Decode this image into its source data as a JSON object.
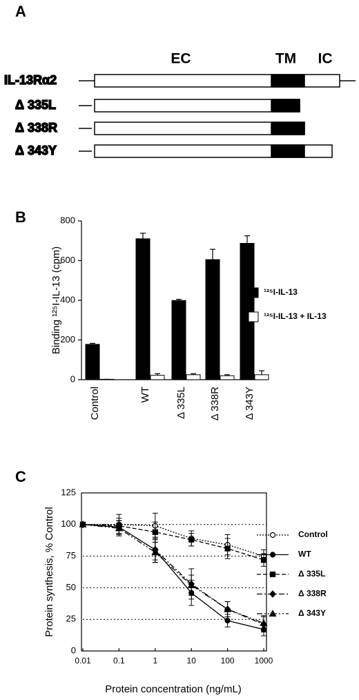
{
  "panel_labels": [
    "A",
    "B",
    "C"
  ],
  "diagram": {
    "domains": [
      "EC",
      "TM",
      "IC"
    ],
    "rows": [
      "IL-13Rα2",
      "Δ 335L",
      "Δ 338R",
      "Δ 343Y"
    ]
  },
  "chart_data": [
    {
      "type": "bar",
      "ylabel": "Binding ¹²⁵I-IL-13 (cpm)",
      "categories": [
        "Control",
        "WT",
        "Δ 335L",
        "Δ 338R",
        "Δ 343Y"
      ],
      "series": [
        {
          "name": "¹²⁵I-IL-13",
          "color": "#000000",
          "values": [
            178,
            710,
            399,
            605,
            687
          ],
          "errors": [
            5,
            28,
            6,
            52,
            38
          ]
        },
        {
          "name": "¹²⁵I-IL-13 + IL-13",
          "color": "#ffffff",
          "values": [
            2,
            22,
            25,
            20,
            25
          ],
          "errors": [
            0,
            8,
            5,
            5,
            20
          ]
        }
      ],
      "ylim": [
        0,
        800
      ],
      "yticks": [
        0,
        200,
        400,
        600,
        800
      ]
    },
    {
      "type": "line",
      "xlabel": "Protein concentration (ng/mL)",
      "ylabel": "Protein synthesis, % Control",
      "xscale": "log",
      "x": [
        0.01,
        0.1,
        1,
        10,
        100,
        1000
      ],
      "series": [
        {
          "name": "Control",
          "color": "#000000",
          "marker": "circle-open",
          "linestyle": "dotted",
          "values": [
            100,
            100,
            99,
            89,
            84,
            75
          ],
          "errors": [
            0,
            8,
            10,
            6,
            8,
            5
          ]
        },
        {
          "name": "WT",
          "color": "#000000",
          "marker": "circle",
          "linestyle": "solid",
          "values": [
            100,
            98,
            80,
            46,
            24,
            17
          ],
          "errors": [
            0,
            5,
            10,
            10,
            5,
            5
          ]
        },
        {
          "name": "Δ 335L",
          "color": "#000000",
          "marker": "square",
          "linestyle": "dashed",
          "values": [
            100,
            99,
            94,
            88,
            81,
            72
          ],
          "errors": [
            0,
            6,
            8,
            5,
            8,
            5
          ]
        },
        {
          "name": "Δ 338R",
          "color": "#000000",
          "marker": "diamond",
          "linestyle": "dashdot",
          "values": [
            100,
            98,
            80,
            53,
            33,
            21
          ],
          "errors": [
            0,
            5,
            8,
            12,
            6,
            6
          ]
        },
        {
          "name": "Δ 343Y",
          "color": "#000000",
          "marker": "triangle",
          "linestyle": "dashdotdot",
          "values": [
            100,
            97,
            78,
            52,
            33,
            22
          ],
          "errors": [
            0,
            6,
            8,
            8,
            6,
            6
          ]
        }
      ],
      "xlim": [
        0.01,
        1000
      ],
      "xticks": [
        0.01,
        0.1,
        1,
        10,
        100,
        1000
      ],
      "ylim": [
        0,
        125
      ],
      "yticks": [
        0,
        25,
        50,
        75,
        100,
        125
      ],
      "grid": true
    }
  ]
}
